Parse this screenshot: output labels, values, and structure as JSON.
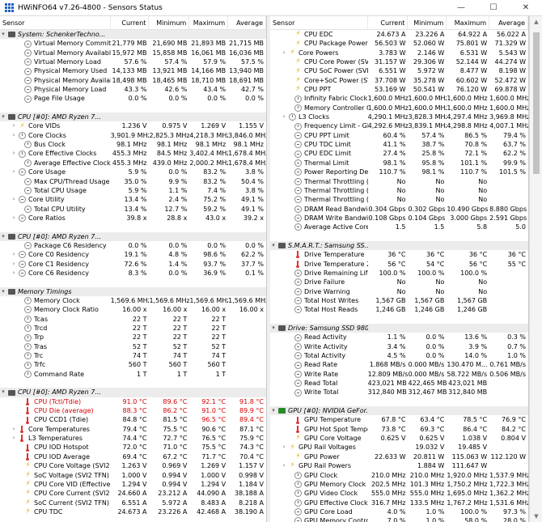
{
  "window": {
    "title": "HWiNFO64 v7.26-4800 - Sensors Status"
  },
  "columns": {
    "sensor": "Sensor",
    "current": "Current",
    "minimum": "Minimum",
    "maximum": "Maximum",
    "average": "Average"
  },
  "colors": {
    "critical": "#d40000",
    "group_bg": "#ececec"
  },
  "left_rows": [
    {
      "t": "g",
      "icon": "chip",
      "label": "System: SchenkerTechno..."
    },
    {
      "t": "s",
      "icon": "minus",
      "label": "Virtual Memory Committed",
      "cur": "21,779 MB",
      "min": "21,690 MB",
      "max": "21,893 MB",
      "avg": "21,715 MB"
    },
    {
      "t": "s",
      "icon": "minus",
      "label": "Virtual Memory Available",
      "cur": "15,972 MB",
      "min": "15,858 MB",
      "max": "16,061 MB",
      "avg": "16,036 MB"
    },
    {
      "t": "s",
      "icon": "minus",
      "label": "Virtual Memory Load",
      "cur": "57.6 %",
      "min": "57.4 %",
      "max": "57.9 %",
      "avg": "57.5 %"
    },
    {
      "t": "s",
      "icon": "minus",
      "label": "Physical Memory Used",
      "cur": "14,133 MB",
      "min": "13,921 MB",
      "max": "14,166 MB",
      "avg": "13,940 MB"
    },
    {
      "t": "s",
      "icon": "minus",
      "label": "Physical Memory Available",
      "cur": "18,498 MB",
      "min": "18,465 MB",
      "max": "18,710 MB",
      "avg": "18,691 MB"
    },
    {
      "t": "s",
      "icon": "minus",
      "label": "Physical Memory Load",
      "cur": "43.3 %",
      "min": "42.6 %",
      "max": "43.4 %",
      "avg": "42.7 %"
    },
    {
      "t": "s",
      "icon": "minus",
      "label": "Page File Usage",
      "cur": "0.0 %",
      "min": "0.0 %",
      "max": "0.0 %",
      "avg": "0.0 %"
    },
    {
      "t": "sp"
    },
    {
      "t": "g",
      "icon": "chip",
      "label": "CPU [#0]: AMD Ryzen 7..."
    },
    {
      "t": "s",
      "icon": "bolt",
      "exp": true,
      "label": "Core VIDs",
      "cur": "1.236 V",
      "min": "0.975 V",
      "max": "1.269 V",
      "avg": "1.155 V"
    },
    {
      "t": "s",
      "icon": "clock",
      "exp": true,
      "label": "Core Clocks",
      "cur": "3,901.9 MHz",
      "min": "2,825.3 MHz",
      "max": "4,218.3 MHz",
      "avg": "3,846.0 MHz"
    },
    {
      "t": "s",
      "icon": "clock",
      "label": "Bus Clock",
      "cur": "98.1 MHz",
      "min": "98.1 MHz",
      "max": "98.1 MHz",
      "avg": "98.1 MHz"
    },
    {
      "t": "s",
      "icon": "clock",
      "exp": true,
      "label": "Core Effective Clocks",
      "cur": "455.3 MHz",
      "min": "84.5 MHz",
      "max": "3,402.4 MHz",
      "avg": "1,678.4 MHz"
    },
    {
      "t": "s",
      "icon": "clock",
      "label": "Average Effective Clock",
      "cur": "455.3 MHz",
      "min": "439.0 MHz",
      "max": "2,000.2 MHz",
      "avg": "1,678.4 MHz"
    },
    {
      "t": "s",
      "icon": "minus",
      "exp": true,
      "label": "Core Usage",
      "cur": "5.9 %",
      "min": "0.0 %",
      "max": "83.2 %",
      "avg": "3.8 %"
    },
    {
      "t": "s",
      "icon": "minus",
      "label": "Max CPU/Thread Usage",
      "cur": "35.0 %",
      "min": "9.9 %",
      "max": "83.2 %",
      "avg": "50.4 %"
    },
    {
      "t": "s",
      "icon": "minus",
      "label": "Total CPU Usage",
      "cur": "5.9 %",
      "min": "1.1 %",
      "max": "7.4 %",
      "avg": "3.8 %"
    },
    {
      "t": "s",
      "icon": "minus",
      "exp": true,
      "label": "Core Utility",
      "cur": "13.4 %",
      "min": "2.4 %",
      "max": "75.2 %",
      "avg": "49.1 %"
    },
    {
      "t": "s",
      "icon": "minus",
      "label": "Total CPU Utility",
      "cur": "13.4 %",
      "min": "12.7 %",
      "max": "59.2 %",
      "avg": "49.1 %"
    },
    {
      "t": "s",
      "icon": "minus",
      "exp": true,
      "label": "Core Ratios",
      "cur": "39.8 x",
      "min": "28.8 x",
      "max": "43.0 x",
      "avg": "39.2 x"
    },
    {
      "t": "sp"
    },
    {
      "t": "g",
      "icon": "chip",
      "label": "CPU [#0]: AMD Ryzen 7..."
    },
    {
      "t": "s",
      "icon": "minus",
      "label": "Package C6 Residency",
      "cur": "0.0 %",
      "min": "0.0 %",
      "max": "0.0 %",
      "avg": "0.0 %"
    },
    {
      "t": "s",
      "icon": "minus",
      "exp": true,
      "label": "Core C0 Residency",
      "cur": "19.1 %",
      "min": "4.8 %",
      "max": "98.6 %",
      "avg": "62.2 %"
    },
    {
      "t": "s",
      "icon": "minus",
      "exp": true,
      "label": "Core C1 Residency",
      "cur": "72.6 %",
      "min": "1.4 %",
      "max": "93.7 %",
      "avg": "37.7 %"
    },
    {
      "t": "s",
      "icon": "minus",
      "exp": true,
      "label": "Core C6 Residency",
      "cur": "8.3 %",
      "min": "0.0 %",
      "max": "36.9 %",
      "avg": "0.1 %"
    },
    {
      "t": "sp"
    },
    {
      "t": "g",
      "icon": "chip",
      "label": "Memory Timings"
    },
    {
      "t": "s",
      "icon": "clock",
      "label": "Memory Clock",
      "cur": "1,569.6 MHz",
      "min": "1,569.6 MHz",
      "max": "1,569.6 MHz",
      "avg": "1,569.6 MHz"
    },
    {
      "t": "s",
      "icon": "minus",
      "label": "Memory Clock Ratio",
      "cur": "16.00 x",
      "min": "16.00 x",
      "max": "16.00 x",
      "avg": "16.00 x"
    },
    {
      "t": "s",
      "icon": "clock",
      "label": "Tcas",
      "cur": "22 T",
      "min": "22 T",
      "max": "22 T",
      "avg": ""
    },
    {
      "t": "s",
      "icon": "clock",
      "label": "Trcd",
      "cur": "22 T",
      "min": "22 T",
      "max": "22 T",
      "avg": ""
    },
    {
      "t": "s",
      "icon": "clock",
      "label": "Trp",
      "cur": "22 T",
      "min": "22 T",
      "max": "22 T",
      "avg": ""
    },
    {
      "t": "s",
      "icon": "clock",
      "label": "Tras",
      "cur": "52 T",
      "min": "52 T",
      "max": "52 T",
      "avg": ""
    },
    {
      "t": "s",
      "icon": "clock",
      "label": "Trc",
      "cur": "74 T",
      "min": "74 T",
      "max": "74 T",
      "avg": ""
    },
    {
      "t": "s",
      "icon": "clock",
      "label": "Trfc",
      "cur": "560 T",
      "min": "560 T",
      "max": "560 T",
      "avg": ""
    },
    {
      "t": "s",
      "icon": "clock",
      "label": "Command Rate",
      "cur": "1 T",
      "min": "1 T",
      "max": "1 T",
      "avg": ""
    },
    {
      "t": "sp"
    },
    {
      "t": "g",
      "icon": "chip",
      "label": "CPU [#0]: AMD Ryzen 7..."
    },
    {
      "t": "s",
      "icon": "therm",
      "label": "CPU (Tctl/Tdie)",
      "cur": "91.0 °C",
      "min": "89.6 °C",
      "max": "92.1 °C",
      "avg": "91.8 °C",
      "red": true
    },
    {
      "t": "s",
      "icon": "therm",
      "label": "CPU Die (average)",
      "cur": "88.3 °C",
      "min": "86.2 °C",
      "max": "91.0 °C",
      "avg": "89.9 °C",
      "red": true
    },
    {
      "t": "s",
      "icon": "therm",
      "label": "CPU CCD1 (Tdie)",
      "cur": "84.8 °C",
      "min": "81.5 °C",
      "max": "96.5 °C",
      "avg": "89.4 °C",
      "redcols": [
        "max",
        "avg"
      ]
    },
    {
      "t": "s",
      "icon": "therm",
      "exp": true,
      "label": "Core Temperatures",
      "cur": "79.4 °C",
      "min": "75.5 °C",
      "max": "90.6 °C",
      "avg": "87.1 °C"
    },
    {
      "t": "s",
      "icon": "therm",
      "exp": true,
      "label": "L3 Temperatures",
      "cur": "74.4 °C",
      "min": "72.7 °C",
      "max": "76.5 °C",
      "avg": "75.9 °C"
    },
    {
      "t": "s",
      "icon": "therm",
      "label": "CPU IOD Hotspot",
      "cur": "72.0 °C",
      "min": "71.0 °C",
      "max": "75.5 °C",
      "avg": "74.3 °C"
    },
    {
      "t": "s",
      "icon": "therm",
      "label": "CPU IOD Average",
      "cur": "69.4 °C",
      "min": "67.2 °C",
      "max": "71.7 °C",
      "avg": "70.4 °C"
    },
    {
      "t": "s",
      "icon": "bolt",
      "label": "CPU Core Voltage (SVI2 ...",
      "cur": "1.263 V",
      "min": "0.969 V",
      "max": "1.269 V",
      "avg": "1.157 V"
    },
    {
      "t": "s",
      "icon": "bolt",
      "label": "SoC Voltage (SVI2 TFN)",
      "cur": "1.000 V",
      "min": "0.994 V",
      "max": "1.000 V",
      "avg": "0.998 V"
    },
    {
      "t": "s",
      "icon": "bolt",
      "label": "CPU Core VID (Effective)",
      "cur": "1.294 V",
      "min": "0.994 V",
      "max": "1.294 V",
      "avg": "1.184 V"
    },
    {
      "t": "s",
      "icon": "bolt",
      "label": "CPU Core Current (SVI2 ...",
      "cur": "24.660 A",
      "min": "23.212 A",
      "max": "44.090 A",
      "avg": "38.188 A"
    },
    {
      "t": "s",
      "icon": "bolt",
      "label": "SoC Current (SVI2 TFN)",
      "cur": "6.551 A",
      "min": "5.972 A",
      "max": "8.483 A",
      "avg": "8.218 A"
    },
    {
      "t": "s",
      "icon": "bolt",
      "label": "CPU TDC",
      "cur": "24.673 A",
      "min": "23.226 A",
      "max": "42.468 A",
      "avg": "38.190 A"
    }
  ],
  "right_rows": [
    {
      "t": "s",
      "icon": "bolt",
      "label": "CPU EDC",
      "cur": "24.673 A",
      "min": "23.226 A",
      "max": "64.922 A",
      "avg": "56.022 A"
    },
    {
      "t": "s",
      "icon": "bolt",
      "label": "CPU Package Power",
      "cur": "56.503 W",
      "min": "52.060 W",
      "max": "75.801 W",
      "avg": "71.329 W"
    },
    {
      "t": "s",
      "icon": "bolt",
      "exp": true,
      "label": "Core Powers",
      "cur": "3.783 W",
      "min": "2.146 W",
      "max": "6.531 W",
      "avg": "5.543 W"
    },
    {
      "t": "s",
      "icon": "bolt",
      "label": "CPU Core Power (SVI2 TFN)",
      "cur": "31.157 W",
      "min": "29.306 W",
      "max": "52.144 W",
      "avg": "44.274 W"
    },
    {
      "t": "s",
      "icon": "bolt",
      "label": "CPU SoC Power (SVI2 TFN)",
      "cur": "6.551 W",
      "min": "5.972 W",
      "max": "8.477 W",
      "avg": "8.198 W"
    },
    {
      "t": "s",
      "icon": "bolt",
      "label": "Core+SoC Power (SVI2 T...",
      "cur": "37.708 W",
      "min": "35.278 W",
      "max": "60.602 W",
      "avg": "52.472 W"
    },
    {
      "t": "s",
      "icon": "bolt",
      "label": "CPU PPT",
      "cur": "53.169 W",
      "min": "50.541 W",
      "max": "76.120 W",
      "avg": "69.878 W"
    },
    {
      "t": "s",
      "icon": "clock",
      "label": "Infinity Fabric Clock (FCLK)",
      "cur": "1,600.0 MHz",
      "min": "1,600.0 MHz",
      "max": "1,600.0 MHz",
      "avg": "1,600.0 MHz"
    },
    {
      "t": "s",
      "icon": "clock",
      "label": "Memory Controller Clock ...",
      "cur": "1,600.0 MHz",
      "min": "1,600.0 MHz",
      "max": "1,600.0 MHz",
      "avg": "1,600.0 MHz"
    },
    {
      "t": "s",
      "icon": "clock",
      "exp": true,
      "label": "L3 Clocks",
      "cur": "4,290.1 MHz",
      "min": "3,828.3 MHz",
      "max": "4,297.4 MHz",
      "avg": "3,969.8 MHz"
    },
    {
      "t": "s",
      "icon": "clock",
      "label": "Frequency Limit - Global",
      "cur": "4,292.6 MHz",
      "min": "3,839.1 MHz",
      "max": "4,298.8 MHz",
      "avg": "4,007.1 MHz"
    },
    {
      "t": "s",
      "icon": "minus",
      "label": "CPU PPT Limit",
      "cur": "60.4 %",
      "min": "57.4 %",
      "max": "86.5 %",
      "avg": "79.4 %"
    },
    {
      "t": "s",
      "icon": "minus",
      "label": "CPU TDC Limit",
      "cur": "41.1 %",
      "min": "38.7 %",
      "max": "70.8 %",
      "avg": "63.7 %"
    },
    {
      "t": "s",
      "icon": "minus",
      "label": "CPU EDC Limit",
      "cur": "27.4 %",
      "min": "25.8 %",
      "max": "72.1 %",
      "avg": "62.2 %"
    },
    {
      "t": "s",
      "icon": "minus",
      "label": "Thermal Limit",
      "cur": "98.1 %",
      "min": "95.8 %",
      "max": "101.1 %",
      "avg": "99.9 %"
    },
    {
      "t": "s",
      "icon": "minus",
      "label": "Power Reporting Deviatio...",
      "cur": "110.7 %",
      "min": "98.1 %",
      "max": "110.7 %",
      "avg": "101.5 %"
    },
    {
      "t": "s",
      "icon": "minus",
      "label": "Thermal Throttling (HTC)",
      "cur": "No",
      "min": "No",
      "max": "No",
      "avg": ""
    },
    {
      "t": "s",
      "icon": "minus",
      "label": "Thermal Throttling (PROC...",
      "cur": "No",
      "min": "No",
      "max": "No",
      "avg": ""
    },
    {
      "t": "s",
      "icon": "minus",
      "label": "Thermal Throttling (PROC...",
      "cur": "No",
      "min": "No",
      "max": "No",
      "avg": ""
    },
    {
      "t": "s",
      "icon": "minus",
      "label": "DRAM Read Bandwidth",
      "cur": "0.304 Gbps",
      "min": "0.302 Gbps",
      "max": "10.490 Gbps",
      "avg": "8.880 Gbps"
    },
    {
      "t": "s",
      "icon": "minus",
      "label": "DRAM Write Bandwidth",
      "cur": "0.108 Gbps",
      "min": "0.104 Gbps",
      "max": "3.000 Gbps",
      "avg": "2.591 Gbps"
    },
    {
      "t": "s",
      "icon": "minus",
      "label": "Average Active Core Count",
      "cur": "1.5",
      "min": "1.5",
      "max": "5.8",
      "avg": "5.0"
    },
    {
      "t": "sp"
    },
    {
      "t": "g",
      "icon": "chip",
      "label": "S.M.A.R.T.: Samsung SS..."
    },
    {
      "t": "s",
      "icon": "therm",
      "label": "Drive Temperature",
      "cur": "36 °C",
      "min": "36 °C",
      "max": "36 °C",
      "avg": "36 °C"
    },
    {
      "t": "s",
      "icon": "therm",
      "label": "Drive Temperature 2",
      "cur": "56 °C",
      "min": "54 °C",
      "max": "56 °C",
      "avg": "55 °C"
    },
    {
      "t": "s",
      "icon": "minus",
      "label": "Drive Remaining Life",
      "cur": "100.0 %",
      "min": "100.0 %",
      "max": "100.0 %",
      "avg": ""
    },
    {
      "t": "s",
      "icon": "minus",
      "label": "Drive Failure",
      "cur": "No",
      "min": "No",
      "max": "No",
      "avg": ""
    },
    {
      "t": "s",
      "icon": "minus",
      "label": "Drive Warning",
      "cur": "No",
      "min": "No",
      "max": "No",
      "avg": ""
    },
    {
      "t": "s",
      "icon": "minus",
      "label": "Total Host Writes",
      "cur": "1,567 GB",
      "min": "1,567 GB",
      "max": "1,567 GB",
      "avg": ""
    },
    {
      "t": "s",
      "icon": "minus",
      "label": "Total Host Reads",
      "cur": "1,246 GB",
      "min": "1,246 GB",
      "max": "1,246 GB",
      "avg": ""
    },
    {
      "t": "sp"
    },
    {
      "t": "g",
      "icon": "chip",
      "label": "Drive: Samsung SSD 980 ..."
    },
    {
      "t": "s",
      "icon": "minus",
      "label": "Read Activity",
      "cur": "1.1 %",
      "min": "0.0 %",
      "max": "13.6 %",
      "avg": "0.3 %"
    },
    {
      "t": "s",
      "icon": "minus",
      "label": "Write Activity",
      "cur": "3.4 %",
      "min": "0.0 %",
      "max": "3.9 %",
      "avg": "0.7 %"
    },
    {
      "t": "s",
      "icon": "minus",
      "label": "Total Activity",
      "cur": "4.5 %",
      "min": "0.0 %",
      "max": "14.0 %",
      "avg": "1.0 %"
    },
    {
      "t": "s",
      "icon": "minus",
      "label": "Read Rate",
      "cur": "1.868 MB/s",
      "min": "0.000 MB/s",
      "max": "130.470 M...",
      "avg": "0.761 MB/s"
    },
    {
      "t": "s",
      "icon": "minus",
      "label": "Write Rate",
      "cur": "12.809 MB/s",
      "min": "0.000 MB/s",
      "max": "58.722 MB/s",
      "avg": "0.506 MB/s"
    },
    {
      "t": "s",
      "icon": "minus",
      "label": "Read Total",
      "cur": "423,021 MB",
      "min": "422,465 MB",
      "max": "423,021 MB",
      "avg": ""
    },
    {
      "t": "s",
      "icon": "minus",
      "label": "Write Total",
      "cur": "312,840 MB",
      "min": "312,467 MB",
      "max": "312,840 MB",
      "avg": ""
    },
    {
      "t": "sp"
    },
    {
      "t": "g",
      "icon": "chipg",
      "label": "GPU [#0]: NVIDIA GeFor..."
    },
    {
      "t": "s",
      "icon": "therm",
      "label": "GPU Temperature",
      "cur": "67.8 °C",
      "min": "63.4 °C",
      "max": "78.5 °C",
      "avg": "76.9 °C"
    },
    {
      "t": "s",
      "icon": "therm",
      "label": "GPU Hot Spot Temperature",
      "cur": "73.8 °C",
      "min": "69.3 °C",
      "max": "86.4 °C",
      "avg": "84.2 °C"
    },
    {
      "t": "s",
      "icon": "bolt",
      "label": "GPU Core Voltage",
      "cur": "0.625 V",
      "min": "0.625 V",
      "max": "1.038 V",
      "avg": "0.804 V"
    },
    {
      "t": "s",
      "icon": "bolt",
      "exp": true,
      "label": "GPU Rail Voltages",
      "cur": "",
      "min": "19.032 V",
      "max": "19.485 V",
      "avg": ""
    },
    {
      "t": "s",
      "icon": "bolt",
      "label": "GPU Power",
      "cur": "22.633 W",
      "min": "20.811 W",
      "max": "115.063 W",
      "avg": "112.120 W"
    },
    {
      "t": "s",
      "icon": "bolt",
      "exp": true,
      "label": "GPU Rail Powers",
      "cur": "",
      "min": "1.884 W",
      "max": "111.647 W",
      "avg": ""
    },
    {
      "t": "s",
      "icon": "clock",
      "label": "GPU Clock",
      "cur": "210.0 MHz",
      "min": "210.0 MHz",
      "max": "1,920.0 MHz",
      "avg": "1,537.9 MHz"
    },
    {
      "t": "s",
      "icon": "clock",
      "label": "GPU Memory Clock",
      "cur": "202.5 MHz",
      "min": "101.3 MHz",
      "max": "1,750.2 MHz",
      "avg": "1,722.3 MHz"
    },
    {
      "t": "s",
      "icon": "clock",
      "label": "GPU Video Clock",
      "cur": "555.0 MHz",
      "min": "555.0 MHz",
      "max": "1,695.0 MHz",
      "avg": "1,362.2 MHz"
    },
    {
      "t": "s",
      "icon": "clock",
      "label": "GPU Effective Clock",
      "cur": "316.7 MHz",
      "min": "133.5 MHz",
      "max": "1,767.2 MHz",
      "avg": "1,531.6 MHz"
    },
    {
      "t": "s",
      "icon": "minus",
      "label": "GPU Core Load",
      "cur": "4.0 %",
      "min": "1.0 %",
      "max": "100.0 %",
      "avg": "97.3 %"
    },
    {
      "t": "s",
      "icon": "minus",
      "label": "GPU Memory Controller L...",
      "cur": "7.0 %",
      "min": "1.0 %",
      "max": "58.0 %",
      "avg": "28.0 %"
    }
  ]
}
